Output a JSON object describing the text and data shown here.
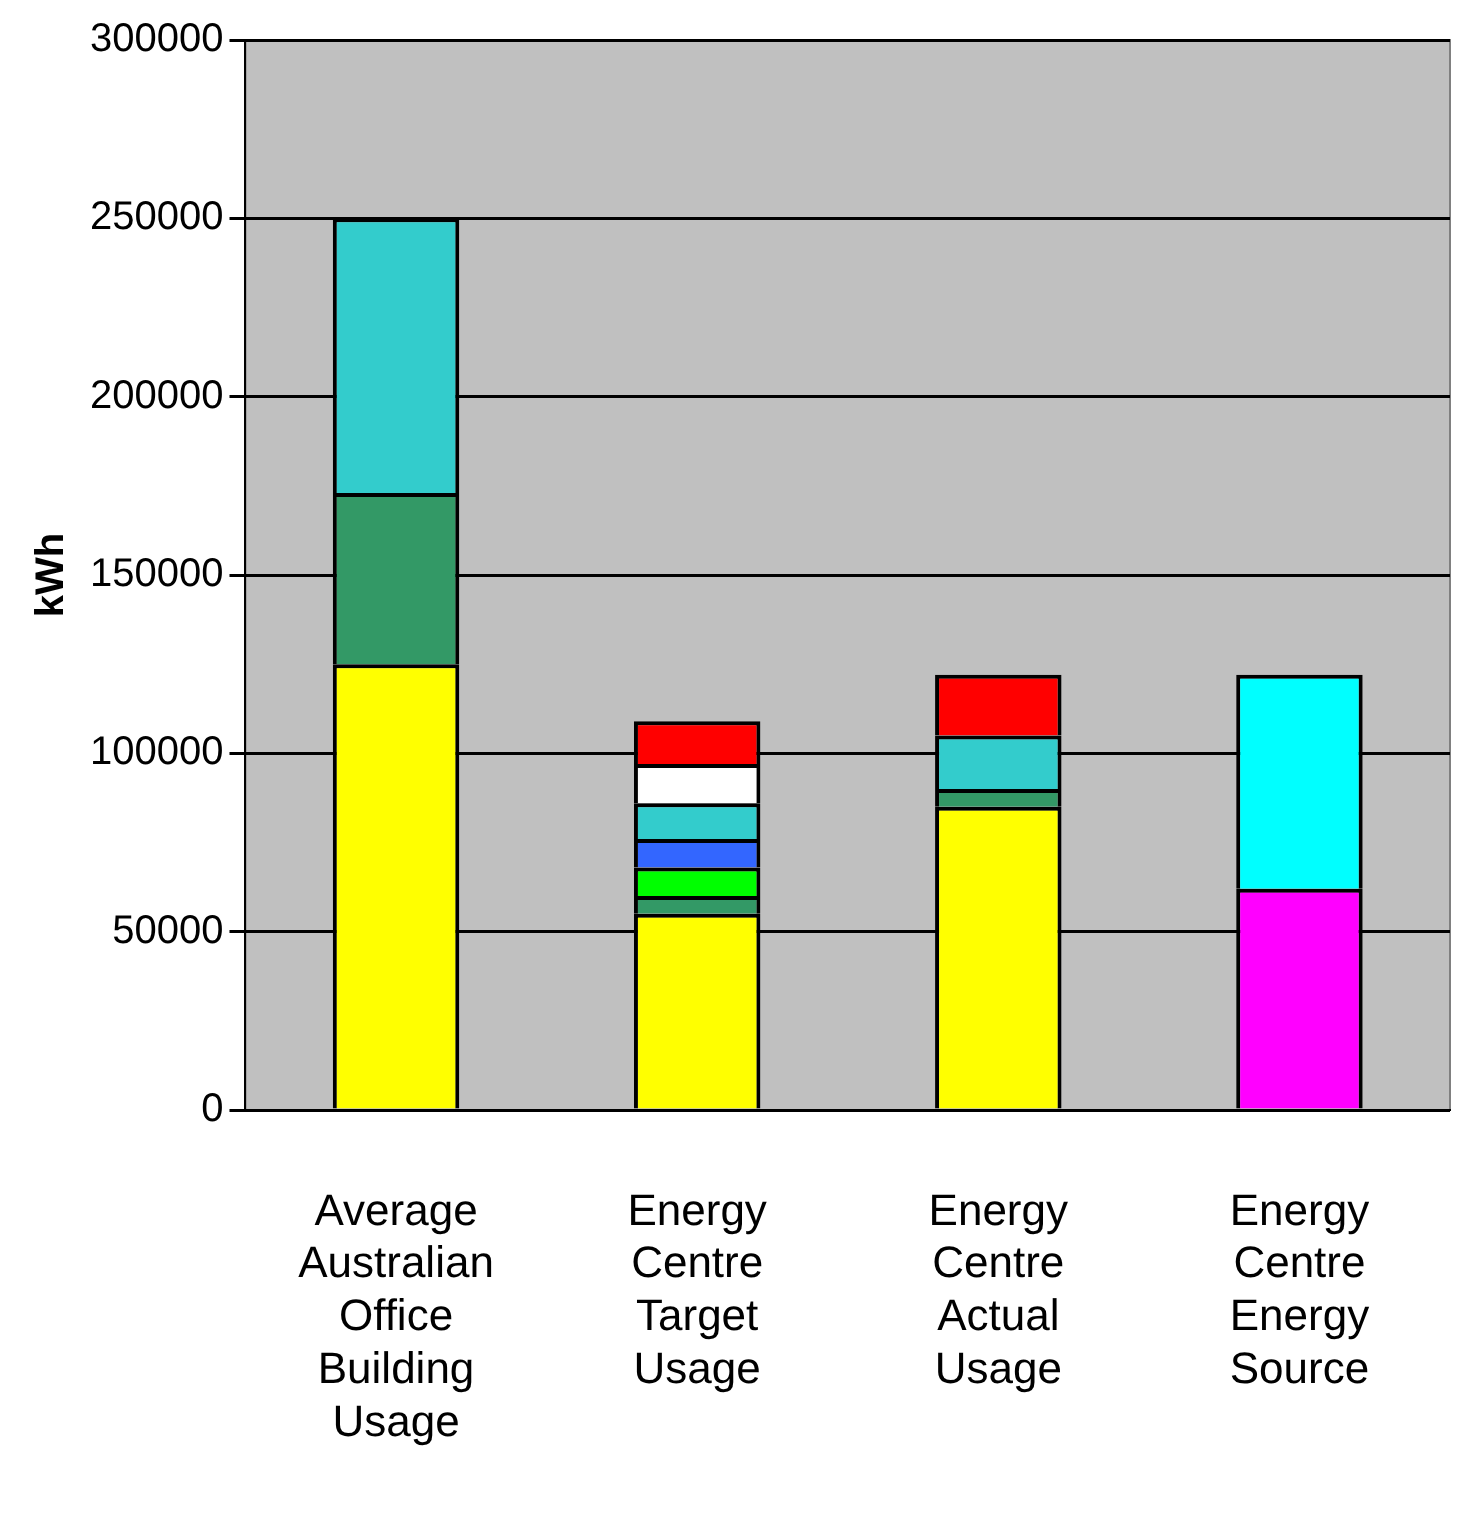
{
  "chart_data": {
    "type": "bar",
    "stacked": true,
    "ylabel": "kWh",
    "categories": [
      "Average Australian Office Building Usage",
      "Energy Centre Target Usage",
      "Energy Centre Actual Usage",
      "Energy Centre Energy Source"
    ],
    "series": [
      {
        "color": "#ffff00",
        "values": [
          125000,
          55000,
          85000,
          null
        ]
      },
      {
        "color": "#339966",
        "values": [
          48000,
          5000,
          5000,
          null
        ]
      },
      {
        "color": "#00ff00",
        "values": [
          null,
          8000,
          null,
          null
        ]
      },
      {
        "color": "#3366ff",
        "values": [
          null,
          8000,
          null,
          null
        ]
      },
      {
        "color": "#33cccc",
        "values": [
          77000,
          10000,
          15000,
          null
        ]
      },
      {
        "color": "#ffffff",
        "values": [
          null,
          11000,
          null,
          null
        ]
      },
      {
        "color": "#ff0000",
        "values": [
          null,
          12000,
          17000,
          null
        ]
      },
      {
        "color": "#ff00ff",
        "values": [
          null,
          null,
          null,
          62000
        ]
      },
      {
        "color": "#00ffff",
        "values": [
          null,
          null,
          null,
          60000
        ]
      }
    ],
    "ylim": [
      0,
      300000
    ],
    "yticks": [
      0,
      50000,
      100000,
      150000,
      200000,
      250000,
      300000
    ],
    "grid": "y",
    "legend": false
  }
}
